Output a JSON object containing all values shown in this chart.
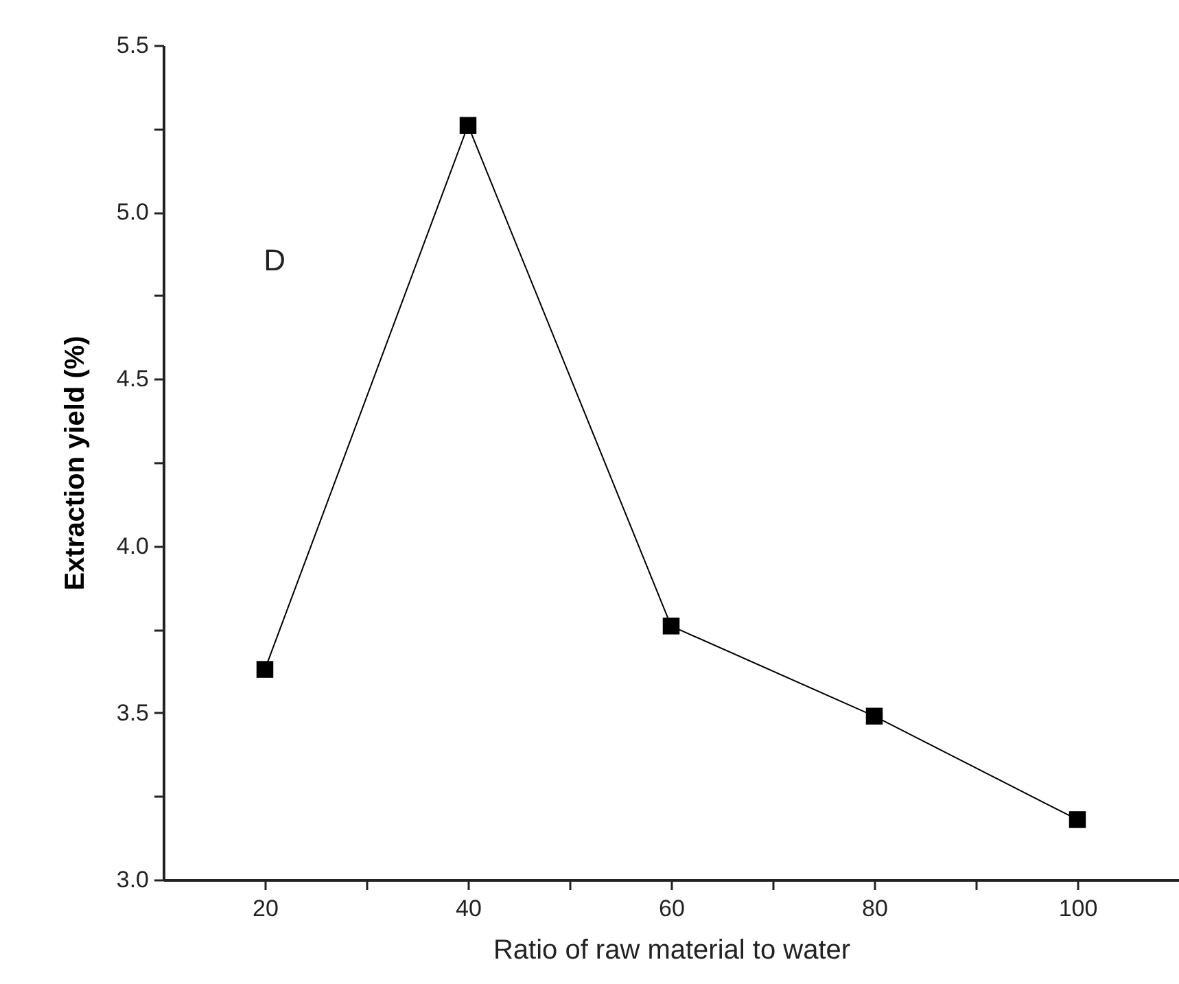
{
  "chart_data": {
    "type": "line",
    "xlabel": "Ratio of raw material to water",
    "ylabel": "Extraction yield (%)",
    "x": [
      20,
      40,
      60,
      80,
      100
    ],
    "series": [
      {
        "color": "#000000",
        "values": [
          3.63,
          5.26,
          3.76,
          3.49,
          3.18
        ]
      }
    ],
    "xlim": [
      10,
      110
    ],
    "xticks": [
      20,
      {
        "value": 30,
        "label": null
      },
      40,
      {
        "value": 50,
        "label": null
      },
      60,
      {
        "value": 70,
        "label": null
      },
      80,
      {
        "value": 90,
        "label": null
      },
      100
    ],
    "ylim": [
      3.0,
      5.5
    ],
    "yticks": [
      {
        "value": 3.0,
        "label": "3.0"
      },
      {
        "value": 3.25,
        "label": null
      },
      {
        "value": 3.5,
        "label": "3.5"
      },
      {
        "value": 3.75,
        "label": null
      },
      {
        "value": 4.0,
        "label": "4.0"
      },
      {
        "value": 4.25,
        "label": null
      },
      {
        "value": 4.5,
        "label": "4.5"
      },
      {
        "value": 4.75,
        "label": null
      },
      {
        "value": 5.0,
        "label": "5.0"
      },
      {
        "value": 5.25,
        "label": null
      },
      {
        "value": 5.5,
        "label": "5.5"
      }
    ],
    "annotations": [
      "D"
    ],
    "marker": "square",
    "line_style": "solid",
    "grid": false
  }
}
